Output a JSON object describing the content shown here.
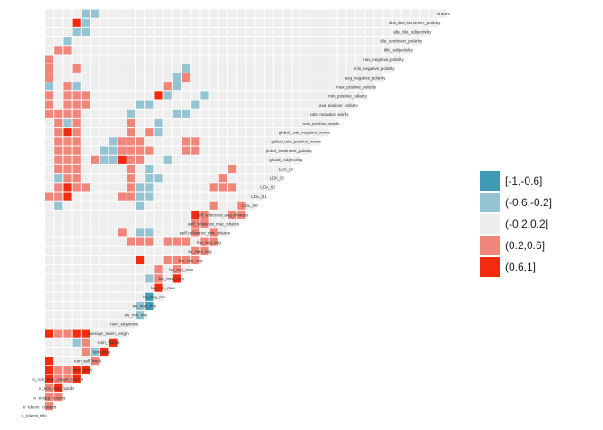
{
  "chart_data": {
    "type": "heatmap",
    "title": "",
    "xlabel": "",
    "ylabel": "",
    "variables": [
      "n_tokens_title",
      "n_tokens_content",
      "n_unique_tokens",
      "n_non_stop_words",
      "n_non_stop_unique_tokens",
      "num_hrefs",
      "num_self_hrefs",
      "num_imgs",
      "num_videos",
      "average_token_length",
      "num_keywords",
      "kw_min_min",
      "kw_max_min",
      "kw_avg_min",
      "kw_min_max",
      "kw_max_max",
      "kw_avg_max",
      "kw_min_avg",
      "kw_max_avg",
      "kw_avg_avg",
      "self_reference_min_shares",
      "self_reference_max_shares",
      "self_reference_avg_sharess",
      "LDA_00",
      "LDA_01",
      "LDA_02",
      "LDA_03",
      "LDA_04",
      "global_subjectivity",
      "global_sentiment_polarity",
      "global_rate_positive_words",
      "global_rate_negative_words",
      "rate_positive_words",
      "rate_negative_words",
      "avg_positive_polarity",
      "min_positive_polarity",
      "max_positive_polarity",
      "avg_negative_polarity",
      "min_negative_polarity",
      "max_negative_polarity",
      "title_subjectivity",
      "title_sentiment_polarity",
      "abs_title_subjectivity",
      "abs_title_sentiment_polarity",
      "shares"
    ],
    "legend": {
      "placement": "right",
      "bins": [
        {
          "label": "[-1,-0.6]",
          "color": "#3f9ab3"
        },
        {
          "label": "(-0.6,-0.2]",
          "color": "#94c4d1"
        },
        {
          "label": "(-0.2,0.2]",
          "color": "#eeeeee"
        },
        {
          "label": "(0.2,0.6]",
          "color": "#f0857a"
        },
        {
          "label": "(0.6,1]",
          "color": "#f22b10"
        }
      ]
    },
    "default_bin": 2,
    "cells": [
      [
        2,
        1,
        3
      ],
      [
        3,
        1,
        4
      ],
      [
        4,
        1,
        3
      ],
      [
        4,
        2,
        3
      ],
      [
        4,
        3,
        4
      ],
      [
        5,
        1,
        3
      ],
      [
        5,
        2,
        3
      ],
      [
        5,
        3,
        4
      ],
      [
        5,
        4,
        4
      ],
      [
        6,
        5,
        3
      ],
      [
        7,
        6,
        4
      ],
      [
        8,
        7,
        4
      ],
      [
        4,
        0,
        4
      ],
      [
        7,
        5,
        1
      ],
      [
        9,
        0,
        4
      ],
      [
        9,
        1,
        3
      ],
      [
        9,
        2,
        3
      ],
      [
        9,
        3,
        4
      ],
      [
        9,
        4,
        4
      ],
      [
        11,
        10,
        1
      ],
      [
        12,
        10,
        1
      ],
      [
        12,
        11,
        0
      ],
      [
        13,
        11,
        0
      ],
      [
        15,
        11,
        1
      ],
      [
        17,
        10,
        4
      ],
      [
        17,
        13,
        3
      ],
      [
        17,
        14,
        3
      ],
      [
        17,
        15,
        3
      ],
      [
        17,
        16,
        3
      ],
      [
        15,
        12,
        3
      ],
      [
        16,
        12,
        3
      ],
      [
        16,
        14,
        3
      ],
      [
        14,
        12,
        4
      ],
      [
        15,
        14,
        4
      ],
      [
        18,
        16,
        3
      ],
      [
        18,
        17,
        3
      ],
      [
        19,
        17,
        3
      ],
      [
        19,
        18,
        3
      ],
      [
        19,
        11,
        3
      ],
      [
        19,
        13,
        3
      ],
      [
        19,
        14,
        3
      ],
      [
        19,
        15,
        3
      ],
      [
        20,
        16,
        3
      ],
      [
        20,
        18,
        3
      ],
      [
        22,
        16,
        4
      ],
      [
        22,
        17,
        3
      ],
      [
        22,
        20,
        3
      ],
      [
        22,
        21,
        3
      ],
      [
        22,
        23,
        4
      ],
      [
        21,
        16,
        3
      ],
      [
        21,
        17,
        3
      ],
      [
        23,
        18,
        3
      ],
      [
        23,
        21,
        3
      ],
      [
        23,
        10,
        1
      ],
      [
        24,
        10,
        1
      ],
      [
        25,
        10,
        1
      ],
      [
        26,
        11,
        1
      ],
      [
        24,
        11,
        1
      ],
      [
        25,
        11,
        1
      ],
      [
        26,
        12,
        1
      ],
      [
        27,
        11,
        1
      ],
      [
        28,
        13,
        1
      ],
      [
        20,
        8,
        3
      ],
      [
        20,
        10,
        1
      ],
      [
        20,
        11,
        1
      ],
      [
        19,
        9,
        3
      ],
      [
        19,
        10,
        3
      ],
      [
        25,
        18,
        3
      ],
      [
        25,
        19,
        3
      ],
      [
        25,
        20,
        3
      ],
      [
        26,
        19,
        3
      ],
      [
        27,
        20,
        3
      ],
      [
        29,
        15,
        3
      ],
      [
        29,
        16,
        3
      ],
      [
        30,
        15,
        3
      ],
      [
        30,
        16,
        3
      ],
      [
        28,
        5,
        3
      ],
      [
        28,
        6,
        1
      ],
      [
        28,
        7,
        1
      ],
      [
        28,
        8,
        4
      ],
      [
        28,
        9,
        3
      ],
      [
        29,
        6,
        1
      ],
      [
        29,
        7,
        1
      ],
      [
        29,
        8,
        3
      ],
      [
        30,
        7,
        1
      ],
      [
        30,
        8,
        3
      ],
      [
        30,
        9,
        3
      ],
      [
        28,
        10,
        3
      ],
      [
        29,
        10,
        3
      ],
      [
        29,
        11,
        3
      ],
      [
        30,
        10,
        3
      ],
      [
        31,
        11,
        3
      ],
      [
        31,
        12,
        1
      ],
      [
        32,
        12,
        1
      ],
      [
        33,
        9,
        1
      ],
      [
        34,
        10,
        1
      ],
      [
        34,
        11,
        1
      ],
      [
        35,
        12,
        4
      ],
      [
        35,
        13,
        1
      ],
      [
        36,
        13,
        3
      ],
      [
        36,
        14,
        1
      ],
      [
        37,
        14,
        1
      ],
      [
        37,
        15,
        3
      ],
      [
        38,
        15,
        1
      ],
      [
        33,
        14,
        1
      ],
      [
        33,
        15,
        1
      ],
      [
        34,
        16,
        1
      ],
      [
        35,
        17,
        1
      ],
      [
        40,
        1,
        3
      ],
      [
        40,
        2,
        3
      ],
      [
        41,
        2,
        1
      ],
      [
        42,
        3,
        1
      ],
      [
        42,
        4,
        1
      ],
      [
        43,
        4,
        1
      ],
      [
        43,
        3,
        4
      ],
      [
        44,
        5,
        1
      ],
      [
        44,
        4,
        1
      ],
      [
        24,
        1,
        3
      ],
      [
        25,
        1,
        3
      ],
      [
        26,
        1,
        1
      ],
      [
        27,
        1,
        3
      ],
      [
        28,
        1,
        3
      ],
      [
        29,
        1,
        3
      ],
      [
        30,
        1,
        3
      ],
      [
        31,
        1,
        3
      ],
      [
        32,
        1,
        3
      ],
      [
        33,
        1,
        3
      ],
      [
        33,
        0,
        3
      ],
      [
        34,
        0,
        3
      ],
      [
        35,
        0,
        3
      ],
      [
        36,
        0,
        1
      ],
      [
        37,
        0,
        3
      ],
      [
        38,
        0,
        3
      ],
      [
        39,
        0,
        3
      ],
      [
        24,
        2,
        4
      ],
      [
        25,
        2,
        4
      ],
      [
        26,
        2,
        3
      ],
      [
        27,
        2,
        3
      ],
      [
        28,
        2,
        3
      ],
      [
        29,
        2,
        3
      ],
      [
        30,
        2,
        3
      ],
      [
        31,
        2,
        4
      ],
      [
        32,
        2,
        1
      ],
      [
        33,
        2,
        3
      ],
      [
        34,
        2,
        3
      ],
      [
        35,
        2,
        3
      ],
      [
        36,
        2,
        3
      ],
      [
        25,
        3,
        3
      ],
      [
        26,
        3,
        3
      ],
      [
        27,
        3,
        3
      ],
      [
        28,
        3,
        3
      ],
      [
        29,
        3,
        3
      ],
      [
        30,
        3,
        3
      ],
      [
        31,
        3,
        3
      ],
      [
        32,
        3,
        3
      ],
      [
        33,
        3,
        3
      ],
      [
        34,
        3,
        3
      ],
      [
        35,
        3,
        3
      ],
      [
        36,
        3,
        1
      ],
      [
        38,
        3,
        3
      ],
      [
        25,
        4,
        3
      ],
      [
        34,
        4,
        3
      ],
      [
        35,
        4,
        3
      ],
      [
        24,
        8,
        3
      ],
      [
        24,
        9,
        3
      ],
      [
        25,
        9,
        3
      ],
      [
        26,
        9,
        3
      ],
      [
        27,
        9,
        3
      ],
      [
        28,
        9,
        3
      ],
      [
        29,
        9,
        3
      ],
      [
        30,
        9,
        3
      ],
      [
        31,
        9,
        3
      ],
      [
        32,
        9,
        3
      ],
      [
        24,
        0,
        3
      ],
      [
        23,
        1,
        1
      ],
      [
        3,
        0,
        3
      ],
      [
        2,
        0,
        3
      ],
      [
        1,
        0,
        3
      ],
      [
        5,
        0,
        4
      ],
      [
        6,
        0,
        4
      ],
      [
        8,
        3,
        1
      ],
      [
        8,
        4,
        3
      ],
      [
        7,
        4,
        3
      ]
    ]
  }
}
